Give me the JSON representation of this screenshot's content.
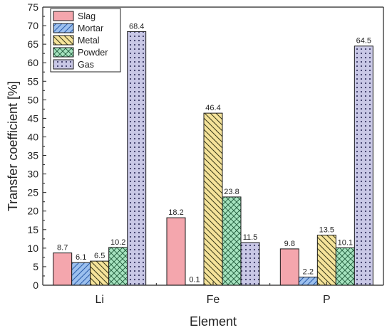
{
  "chart_data": {
    "type": "bar",
    "xlabel": "Element",
    "ylabel": "Transfer coefficient [%]",
    "ylim": [
      0,
      75
    ],
    "yticks": [
      0,
      5,
      10,
      15,
      20,
      25,
      30,
      35,
      40,
      45,
      50,
      55,
      60,
      65,
      70,
      75
    ],
    "categories": [
      "Li",
      "Fe",
      "P"
    ],
    "legend_position": "top-left",
    "grid": false,
    "series": [
      {
        "name": "Slag",
        "values": [
          8.7,
          18.2,
          9.8
        ],
        "labels": [
          "8.7",
          "18.2",
          "9.8"
        ],
        "color": "#f4a6ad",
        "pattern": "solid"
      },
      {
        "name": "Mortar",
        "values": [
          6.1,
          0.1,
          2.2
        ],
        "labels": [
          "6.1",
          "0.1",
          "2.2"
        ],
        "color": "#9cc0ee",
        "pattern": "diagonal-forward"
      },
      {
        "name": "Metal",
        "values": [
          6.5,
          46.4,
          13.5
        ],
        "labels": [
          "6.5",
          "46.4",
          "13.5"
        ],
        "color": "#f5e39a",
        "pattern": "diagonal-backward"
      },
      {
        "name": "Powder",
        "values": [
          10.2,
          23.8,
          10.1
        ],
        "labels": [
          "10.2",
          "23.8",
          "10.1"
        ],
        "color": "#a6e3bf",
        "pattern": "crosshatch"
      },
      {
        "name": "Gas",
        "values": [
          68.4,
          11.5,
          64.5
        ],
        "labels": [
          "68.4",
          "11.5",
          "64.5"
        ],
        "color": "#c9c8e6",
        "pattern": "dots"
      }
    ]
  }
}
